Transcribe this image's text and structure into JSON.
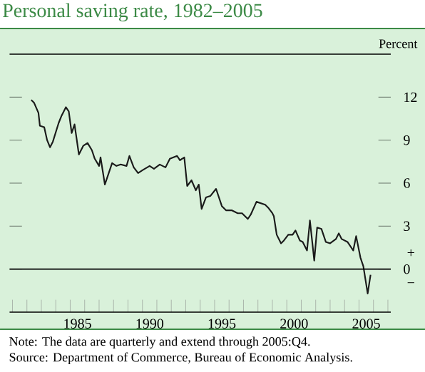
{
  "chart_data": {
    "type": "line",
    "title": "Personal saving rate, 1982–2005",
    "ylabel": "Percent",
    "x": [
      1982.3,
      1982.5,
      1982.8,
      1982.9,
      1983.2,
      1983.4,
      1983.6,
      1983.8,
      1984.2,
      1984.4,
      1984.7,
      1984.9,
      1985.1,
      1985.3,
      1985.6,
      1985.9,
      1986.2,
      1986.5,
      1986.7,
      1987.0,
      1987.1,
      1987.4,
      1987.9,
      1988.2,
      1988.5,
      1988.9,
      1989.1,
      1989.4,
      1989.7,
      1990.0,
      1990.5,
      1990.8,
      1991.2,
      1991.6,
      1991.9,
      1992.4,
      1992.6,
      1992.9,
      1993.1,
      1993.4,
      1993.7,
      1993.9,
      1994.1,
      1994.4,
      1994.7,
      1995.1,
      1995.5,
      1995.8,
      1996.2,
      1996.6,
      1996.9,
      1997.3,
      1997.5,
      1997.9,
      1998.5,
      1998.7,
      1999.0,
      1999.1,
      1999.3,
      1999.6,
      1999.8,
      2000.1,
      2000.4,
      2000.6,
      2000.9,
      2001.1,
      2001.4,
      2001.6,
      2001.9,
      2002.1,
      2002.4,
      2002.7,
      2003.0,
      2003.4,
      2003.6,
      2003.8,
      2004.2,
      2004.6,
      2004.8,
      2005.1,
      2005.3,
      2005.6,
      2005.8
    ],
    "series": [
      {
        "color": "#1a1a1a",
        "values": [
          11.8,
          11.6,
          10.9,
          10.0,
          9.9,
          9.0,
          8.5,
          8.9,
          10.2,
          10.7,
          11.3,
          11.0,
          9.5,
          10.1,
          8.0,
          8.6,
          8.8,
          8.3,
          7.7,
          7.2,
          7.8,
          5.9,
          7.4,
          7.2,
          7.3,
          7.2,
          7.9,
          7.1,
          6.7,
          6.9,
          7.2,
          7.0,
          7.3,
          7.1,
          7.7,
          7.9,
          7.6,
          7.8,
          5.8,
          6.2,
          5.5,
          5.9,
          4.2,
          5.0,
          5.1,
          5.6,
          4.4,
          4.1,
          4.1,
          3.9,
          3.9,
          3.5,
          3.8,
          4.7,
          4.5,
          4.3,
          3.9,
          3.7,
          2.4,
          1.8,
          2.0,
          2.4,
          2.4,
          2.7,
          2.0,
          1.9,
          1.3,
          3.4,
          0.6,
          2.9,
          2.8,
          1.9,
          1.8,
          2.1,
          2.5,
          2.1,
          1.9,
          1.3,
          2.3,
          0.8,
          0.2,
          -1.7,
          -0.4
        ]
      }
    ],
    "xlim": [
      1980.8,
      2007.2
    ],
    "xticks": [
      {
        "value": 1981,
        "label": null
      },
      {
        "value": 1982,
        "label": null
      },
      {
        "value": 1983,
        "label": null
      },
      {
        "value": 1984,
        "label": null
      },
      {
        "value": 1985,
        "label": null
      },
      {
        "value": 1986,
        "label": null
      },
      {
        "value": 1987,
        "label": null
      },
      {
        "value": 1988,
        "label": null
      },
      {
        "value": 1989,
        "label": null
      },
      {
        "value": 1990,
        "label": null
      },
      {
        "value": 1991,
        "label": null
      },
      {
        "value": 1992,
        "label": null
      },
      {
        "value": 1993,
        "label": null
      },
      {
        "value": 1994,
        "label": null
      },
      {
        "value": 1995,
        "label": null
      },
      {
        "value": 1996,
        "label": null
      },
      {
        "value": 1997,
        "label": null
      },
      {
        "value": 1998,
        "label": null
      },
      {
        "value": 1999,
        "label": null
      },
      {
        "value": 2000,
        "label": null
      },
      {
        "value": 2001,
        "label": null
      },
      {
        "value": 2002,
        "label": null
      },
      {
        "value": 2003,
        "label": null
      },
      {
        "value": 2004,
        "label": null
      },
      {
        "value": 2005,
        "label": null
      },
      {
        "value": 2006,
        "label": null
      },
      {
        "value": 2007,
        "label": null
      },
      {
        "value": 1985.5,
        "label": "1985"
      },
      {
        "value": 1990.5,
        "label": "1990"
      },
      {
        "value": 1995.5,
        "label": "1995"
      },
      {
        "value": 2000.5,
        "label": "2000"
      },
      {
        "value": 2005.5,
        "label": "2005"
      }
    ],
    "ylim": [
      -3,
      15
    ],
    "yticks": [
      {
        "value": 0,
        "label": "0"
      },
      3,
      6,
      9,
      12
    ],
    "ref_lines": [
      {
        "axis": "y",
        "value": 0
      }
    ],
    "annotations": [
      "Note: The data are quarterly and extend through 2005:Q4.",
      "Source: Department of Commerce, Bureau of Economic Analysis.",
      "+",
      "−"
    ]
  }
}
